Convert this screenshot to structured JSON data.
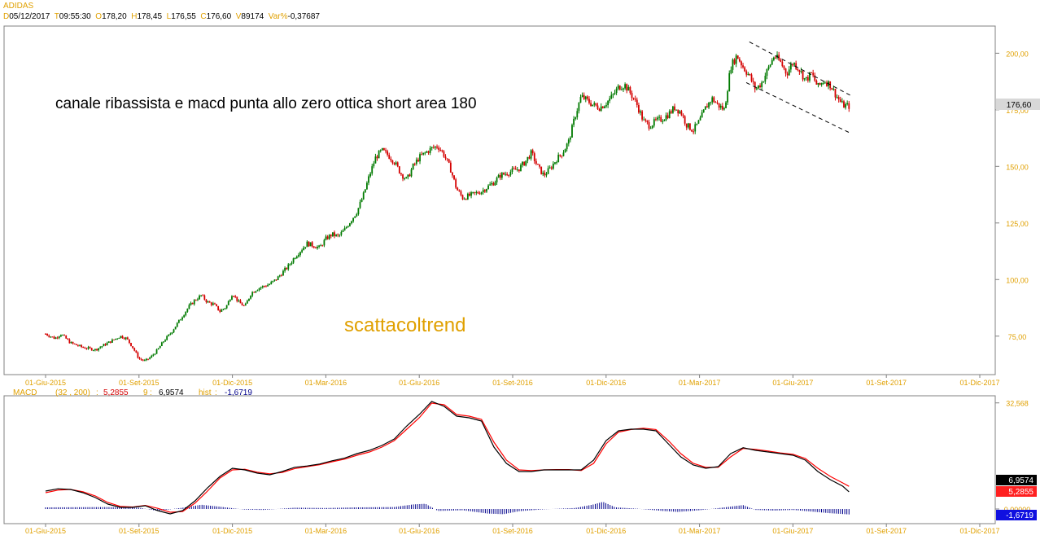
{
  "header": {
    "symbol": "ADIDAS",
    "date_label": "D",
    "date_value": "05/12/2017",
    "time_label": "T",
    "time_value": "09:55:30",
    "open_label": "O",
    "open_value": "178,20",
    "high_label": "H",
    "high_value": "178,45",
    "low_label": "L",
    "low_value": "176,55",
    "close_label": "C",
    "close_value": "176,60",
    "volume_label": "V",
    "volume_value": "89174",
    "varpct_label": "Var%",
    "varpct_value": "-0,37687"
  },
  "annotations": {
    "comment": "canale ribassista e macd punta allo zero ottica short area 180",
    "watermark": "scattacoltrend"
  },
  "colors": {
    "up": "#007a00",
    "down": "#d40000",
    "macd_line": "#000000",
    "signal_line": "#ff0000",
    "hist": "#00008b",
    "axis_text": "#e0a000",
    "grid": "#c8c8c8"
  },
  "chart_data": [
    {
      "type": "candlestick",
      "title": "",
      "x": [
        "01-Giu-2015",
        "01-Set-2015",
        "01-Dic-2015",
        "01-Mar-2016",
        "01-Giu-2016",
        "01-Set-2016",
        "01-Dic-2016",
        "01-Mar-2017",
        "01-Giu-2017",
        "01-Set-2017",
        "01-Dic-2017"
      ],
      "xlabels": [
        "01-Giu-2015",
        "01-Set-2015",
        "01-Dic-2015",
        "01-Mar-2016",
        "01-Giu-2016",
        "01-Set-2016",
        "01-Dic-2016",
        "01-Mar-2017",
        "01-Giu-2017",
        "01-Set-2017",
        "01-Dic-2017"
      ],
      "y_ticks": [
        75,
        100,
        125,
        150,
        175,
        200
      ],
      "y_tick_labels": [
        "75,00",
        "100,00",
        "125,00",
        "150,00",
        "175,00",
        "200,00"
      ],
      "ylim": [
        58,
        212
      ],
      "last_price_label": "176,60",
      "last_price": 176.6,
      "close_path": [
        [
          0,
          76
        ],
        [
          0.3,
          74
        ],
        [
          0.5,
          76
        ],
        [
          0.8,
          72
        ],
        [
          1.2,
          70
        ],
        [
          1.6,
          69
        ],
        [
          2.0,
          72
        ],
        [
          2.4,
          75
        ],
        [
          2.6,
          74
        ],
        [
          2.8,
          70
        ],
        [
          3.0,
          65
        ],
        [
          3.2,
          64
        ],
        [
          3.4,
          66
        ],
        [
          3.6,
          69
        ],
        [
          3.8,
          73
        ],
        [
          4.0,
          76
        ],
        [
          4.2,
          80
        ],
        [
          4.4,
          84
        ],
        [
          4.6,
          88
        ],
        [
          4.8,
          91
        ],
        [
          5.0,
          93
        ],
        [
          5.2,
          90
        ],
        [
          5.4,
          89
        ],
        [
          5.6,
          86
        ],
        [
          5.8,
          88
        ],
        [
          6.0,
          94
        ],
        [
          6.2,
          90
        ],
        [
          6.4,
          88
        ],
        [
          6.6,
          94
        ],
        [
          6.8,
          96
        ],
        [
          7.0,
          97
        ],
        [
          7.2,
          98
        ],
        [
          7.4,
          100
        ],
        [
          7.6,
          103
        ],
        [
          7.8,
          106
        ],
        [
          8.0,
          110
        ],
        [
          8.2,
          113
        ],
        [
          8.4,
          116
        ],
        [
          8.6,
          115
        ],
        [
          8.8,
          114
        ],
        [
          9.0,
          118
        ],
        [
          9.2,
          120
        ],
        [
          9.4,
          119
        ],
        [
          9.6,
          122
        ],
        [
          9.8,
          126
        ],
        [
          10.0,
          130
        ],
        [
          10.2,
          137
        ],
        [
          10.4,
          146
        ],
        [
          10.6,
          154
        ],
        [
          10.8,
          157
        ],
        [
          11.0,
          155
        ],
        [
          11.2,
          152
        ],
        [
          11.4,
          147
        ],
        [
          11.6,
          144
        ],
        [
          11.8,
          150
        ],
        [
          12.0,
          154
        ],
        [
          12.2,
          156
        ],
        [
          12.4,
          158
        ],
        [
          12.6,
          159
        ],
        [
          12.8,
          155
        ],
        [
          13.0,
          149
        ],
        [
          13.2,
          140
        ],
        [
          13.4,
          136
        ],
        [
          13.6,
          137
        ],
        [
          13.8,
          138
        ],
        [
          14.0,
          139
        ],
        [
          14.2,
          141
        ],
        [
          14.4,
          143
        ],
        [
          14.6,
          146
        ],
        [
          14.8,
          147
        ],
        [
          15.0,
          148
        ],
        [
          15.2,
          149
        ],
        [
          15.4,
          152
        ],
        [
          15.6,
          156
        ],
        [
          15.8,
          150
        ],
        [
          16.0,
          146
        ],
        [
          16.2,
          149
        ],
        [
          16.4,
          153
        ],
        [
          16.6,
          156
        ],
        [
          16.8,
          161
        ],
        [
          17.0,
          172
        ],
        [
          17.2,
          181
        ],
        [
          17.4,
          179
        ],
        [
          17.6,
          177
        ],
        [
          17.8,
          176
        ],
        [
          18.0,
          178
        ],
        [
          18.2,
          181
        ],
        [
          18.4,
          185
        ],
        [
          18.6,
          186
        ],
        [
          18.8,
          182
        ],
        [
          19.0,
          177
        ],
        [
          19.2,
          170
        ],
        [
          19.4,
          168
        ],
        [
          19.6,
          170
        ],
        [
          19.8,
          171
        ],
        [
          20.0,
          173
        ],
        [
          20.2,
          176
        ],
        [
          20.4,
          174
        ],
        [
          20.6,
          168
        ],
        [
          20.8,
          166
        ],
        [
          21.0,
          170
        ],
        [
          21.2,
          176
        ],
        [
          21.4,
          180
        ],
        [
          21.6,
          177
        ],
        [
          21.8,
          175
        ],
        [
          22.0,
          194
        ],
        [
          22.2,
          199
        ],
        [
          22.4,
          194
        ],
        [
          22.6,
          190
        ],
        [
          22.8,
          184
        ],
        [
          23.0,
          187
        ],
        [
          23.2,
          193
        ],
        [
          23.4,
          199
        ],
        [
          23.6,
          196
        ],
        [
          23.8,
          191
        ],
        [
          24.0,
          196
        ],
        [
          24.2,
          193
        ],
        [
          24.4,
          188
        ],
        [
          24.6,
          191
        ],
        [
          24.8,
          185
        ],
        [
          25.0,
          188
        ],
        [
          25.2,
          186
        ],
        [
          25.4,
          181
        ],
        [
          25.6,
          177
        ],
        [
          25.8,
          176.6
        ]
      ],
      "channel_upper": [
        [
          22.6,
          205
        ],
        [
          25.9,
          181
        ]
      ],
      "channel_lower": [
        [
          22.5,
          187
        ],
        [
          25.8,
          165
        ]
      ]
    },
    {
      "type": "line",
      "title": "MACD",
      "params": "(32 , 200)",
      "macd_label": "MACD",
      "macd_value": "5,2855",
      "signal_period": "9",
      "signal_value": "6,9574",
      "hist_label": "hist",
      "hist_value": "-1,6719",
      "y_tick_labels": [
        "32,568",
        "0,00000"
      ],
      "ylim": [
        -4,
        34
      ],
      "xlabels": [
        "01-Giu-2015",
        "01-Set-2015",
        "01-Dic-2015",
        "01-Mar-2016",
        "01-Giu-2016",
        "01-Set-2016",
        "01-Dic-2016",
        "01-Mar-2017",
        "01-Giu-2017",
        "01-Set-2017",
        "01-Dic-2017"
      ],
      "macd_path": [
        [
          0,
          5.5
        ],
        [
          0.4,
          6.2
        ],
        [
          0.8,
          6.0
        ],
        [
          1.2,
          5.0
        ],
        [
          1.6,
          3.5
        ],
        [
          2.0,
          1.5
        ],
        [
          2.4,
          0.5
        ],
        [
          2.8,
          0.5
        ],
        [
          3.2,
          1.0
        ],
        [
          3.6,
          -0.5
        ],
        [
          4.0,
          -1.5
        ],
        [
          4.4,
          -0.5
        ],
        [
          4.8,
          2.5
        ],
        [
          5.2,
          6.5
        ],
        [
          5.6,
          10.0
        ],
        [
          6.0,
          12.5
        ],
        [
          6.4,
          12.0
        ],
        [
          6.8,
          11.0
        ],
        [
          7.2,
          10.5
        ],
        [
          7.6,
          11.5
        ],
        [
          8.0,
          12.8
        ],
        [
          8.4,
          13.2
        ],
        [
          8.8,
          13.8
        ],
        [
          9.2,
          14.8
        ],
        [
          9.6,
          15.6
        ],
        [
          10.0,
          17.0
        ],
        [
          10.4,
          18.0
        ],
        [
          10.8,
          19.5
        ],
        [
          11.2,
          21.5
        ],
        [
          11.6,
          25.5
        ],
        [
          12.0,
          29.0
        ],
        [
          12.4,
          33.0
        ],
        [
          12.8,
          31.5
        ],
        [
          13.2,
          28.5
        ],
        [
          13.6,
          28.0
        ],
        [
          14.0,
          27.0
        ],
        [
          14.4,
          19.0
        ],
        [
          14.8,
          14.0
        ],
        [
          15.2,
          11.5
        ],
        [
          15.6,
          11.5
        ],
        [
          16.0,
          12.0
        ],
        [
          16.4,
          12.0
        ],
        [
          16.8,
          12.0
        ],
        [
          17.2,
          12.0
        ],
        [
          17.6,
          15.0
        ],
        [
          18.0,
          21.0
        ],
        [
          18.4,
          24.0
        ],
        [
          18.8,
          24.5
        ],
        [
          19.2,
          24.5
        ],
        [
          19.6,
          24.0
        ],
        [
          20.0,
          20.0
        ],
        [
          20.4,
          16.0
        ],
        [
          20.8,
          13.5
        ],
        [
          21.2,
          12.5
        ],
        [
          21.6,
          13.0
        ],
        [
          22.0,
          17.0
        ],
        [
          22.4,
          18.8
        ],
        [
          22.8,
          18.0
        ],
        [
          23.2,
          17.5
        ],
        [
          23.6,
          17.0
        ],
        [
          24.0,
          16.5
        ],
        [
          24.4,
          15.0
        ],
        [
          24.8,
          11.5
        ],
        [
          25.2,
          9.0
        ],
        [
          25.6,
          7.0
        ],
        [
          25.8,
          5.2855
        ]
      ],
      "signal_path": [
        [
          0,
          5.0
        ],
        [
          0.4,
          5.8
        ],
        [
          0.8,
          6.0
        ],
        [
          1.2,
          5.3
        ],
        [
          1.6,
          4.0
        ],
        [
          2.0,
          2.0
        ],
        [
          2.4,
          0.8
        ],
        [
          2.8,
          0.6
        ],
        [
          3.2,
          1.1
        ],
        [
          3.6,
          0.2
        ],
        [
          4.0,
          -1.0
        ],
        [
          4.4,
          -0.8
        ],
        [
          4.8,
          1.8
        ],
        [
          5.2,
          5.5
        ],
        [
          5.6,
          9.5
        ],
        [
          6.0,
          12.0
        ],
        [
          6.4,
          12.2
        ],
        [
          6.8,
          11.3
        ],
        [
          7.2,
          10.8
        ],
        [
          7.6,
          11.2
        ],
        [
          8.0,
          12.4
        ],
        [
          8.4,
          13.0
        ],
        [
          8.8,
          13.6
        ],
        [
          9.2,
          14.5
        ],
        [
          9.6,
          15.3
        ],
        [
          10.0,
          16.5
        ],
        [
          10.4,
          17.5
        ],
        [
          10.8,
          19.0
        ],
        [
          11.2,
          21.0
        ],
        [
          11.6,
          24.5
        ],
        [
          12.0,
          28.0
        ],
        [
          12.4,
          32.5
        ],
        [
          12.8,
          32.0
        ],
        [
          13.2,
          29.0
        ],
        [
          13.6,
          28.5
        ],
        [
          14.0,
          27.5
        ],
        [
          14.4,
          20.5
        ],
        [
          14.8,
          15.0
        ],
        [
          15.2,
          12.0
        ],
        [
          15.6,
          11.8
        ],
        [
          16.0,
          12.0
        ],
        [
          16.4,
          12.1
        ],
        [
          16.8,
          12.1
        ],
        [
          17.2,
          11.8
        ],
        [
          17.6,
          14.0
        ],
        [
          18.0,
          20.0
        ],
        [
          18.4,
          23.6
        ],
        [
          18.8,
          24.4
        ],
        [
          19.2,
          24.8
        ],
        [
          19.6,
          24.4
        ],
        [
          20.0,
          21.0
        ],
        [
          20.4,
          17.0
        ],
        [
          20.8,
          14.0
        ],
        [
          21.2,
          12.8
        ],
        [
          21.6,
          12.8
        ],
        [
          22.0,
          16.0
        ],
        [
          22.4,
          18.6
        ],
        [
          22.8,
          18.3
        ],
        [
          23.2,
          17.8
        ],
        [
          23.6,
          17.2
        ],
        [
          24.0,
          16.8
        ],
        [
          24.4,
          15.5
        ],
        [
          24.8,
          12.5
        ],
        [
          25.2,
          10.0
        ],
        [
          25.6,
          8.0
        ],
        [
          25.8,
          6.9574
        ]
      ],
      "hist_path": [
        [
          0,
          0.5
        ],
        [
          2,
          0.6
        ],
        [
          3,
          0.4
        ],
        [
          3.6,
          -0.6
        ],
        [
          4.4,
          0.4
        ],
        [
          5.0,
          1.3
        ],
        [
          5.6,
          0.7
        ],
        [
          6.4,
          -0.2
        ],
        [
          7.0,
          -0.3
        ],
        [
          8.0,
          0.4
        ],
        [
          9.0,
          0.3
        ],
        [
          10.0,
          0.5
        ],
        [
          11.2,
          0.6
        ],
        [
          11.8,
          1.4
        ],
        [
          12.2,
          1.6
        ],
        [
          12.6,
          -0.6
        ],
        [
          13.4,
          -0.4
        ],
        [
          14.2,
          -1.4
        ],
        [
          14.7,
          -1.6
        ],
        [
          15.2,
          -0.7
        ],
        [
          16.0,
          -0.1
        ],
        [
          17.0,
          0.3
        ],
        [
          17.6,
          1.4
        ],
        [
          17.9,
          2.2
        ],
        [
          18.3,
          0.5
        ],
        [
          19.0,
          0.1
        ],
        [
          19.8,
          -0.6
        ],
        [
          20.3,
          -0.9
        ],
        [
          21.0,
          -0.4
        ],
        [
          21.8,
          0.5
        ],
        [
          22.4,
          1.2
        ],
        [
          22.8,
          -0.3
        ],
        [
          23.4,
          -0.5
        ],
        [
          24.0,
          -0.3
        ],
        [
          24.6,
          -0.8
        ],
        [
          25.2,
          -1.3
        ],
        [
          25.8,
          -1.6719
        ]
      ]
    }
  ]
}
